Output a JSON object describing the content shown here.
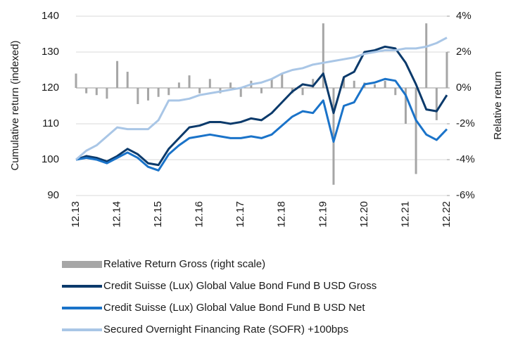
{
  "chart_data": {
    "type": "line",
    "y_label": "Cumulative return (indexed)",
    "y2_label": "Relative return",
    "categories": [
      "12.13",
      null,
      null,
      null,
      "12.14",
      null,
      null,
      null,
      "12.15",
      null,
      null,
      null,
      "12.16",
      null,
      null,
      null,
      "12.17",
      null,
      null,
      null,
      "12.18",
      null,
      null,
      null,
      "12.19",
      null,
      null,
      null,
      "12.20",
      null,
      null,
      null,
      "12.21",
      null,
      null,
      null,
      "12.22"
    ],
    "ylim": [
      90,
      140
    ],
    "yticks": [
      90,
      100,
      110,
      120,
      130,
      140
    ],
    "y2lim": [
      -6,
      4
    ],
    "y2ticks": [
      {
        "value": -6,
        "label": "-6%"
      },
      {
        "value": -4,
        "label": "-4%"
      },
      {
        "value": -2,
        "label": "-2%"
      },
      {
        "value": 0,
        "label": "0%"
      },
      {
        "value": 2,
        "label": "2%"
      },
      {
        "value": 4,
        "label": "4%"
      }
    ],
    "grid": true,
    "series": [
      {
        "name": "Relative Return Gross (right scale)",
        "kind": "bar",
        "axis": "y2",
        "color": "#a6a6a6",
        "values": [
          0.8,
          -0.3,
          -0.4,
          -0.6,
          1.5,
          0.9,
          -0.9,
          -0.7,
          -0.5,
          -0.4,
          0.3,
          0.7,
          -0.3,
          0.5,
          -0.3,
          0.3,
          -0.5,
          0.4,
          -0.3,
          0.5,
          0.8,
          -0.3,
          -0.4,
          0.5,
          3.6,
          -5.4,
          0.6,
          0.4,
          0.3,
          0.2,
          0.4,
          -0.4,
          -2.0,
          -4.8,
          3.6,
          -1.8,
          2.0
        ]
      },
      {
        "name": "Credit Suisse (Lux) Global Value Bond Fund B USD Gross",
        "kind": "line",
        "color": "#0b3a6b",
        "values": [
          100,
          101,
          100.5,
          99.5,
          101,
          103,
          101.5,
          99,
          98.5,
          103,
          106,
          109,
          109.5,
          110.5,
          110.5,
          110,
          110.5,
          111.5,
          111,
          113,
          116,
          119,
          121,
          120.5,
          124,
          113,
          123,
          124.5,
          130,
          130.5,
          131.5,
          131,
          127,
          121,
          114,
          113.5,
          118
        ]
      },
      {
        "name": "Credit Suisse (Lux) Global Value Bond Fund B USD Net",
        "kind": "line",
        "color": "#1a73c9",
        "values": [
          100,
          100.5,
          100,
          99,
          100.5,
          102,
          100.5,
          98,
          97,
          101.5,
          104,
          106,
          106.5,
          107,
          106.5,
          106,
          106,
          106.5,
          106,
          107,
          109.5,
          112,
          113.5,
          113,
          116.5,
          105,
          115,
          116,
          121,
          121.5,
          122.5,
          122,
          118,
          111,
          107,
          105.5,
          108.5
        ]
      },
      {
        "name": "Secured Overnight Financing Rate (SOFR) +100bps",
        "kind": "line",
        "color": "#a9c6e6",
        "values": [
          100,
          102.5,
          104,
          106.5,
          109,
          108.5,
          108.5,
          108.5,
          111,
          116.5,
          116.5,
          117,
          118,
          118.5,
          119,
          119.5,
          120,
          121,
          121.5,
          122.5,
          124,
          125,
          125.5,
          126.5,
          127,
          127.5,
          128,
          128.5,
          129.5,
          130,
          130.5,
          130.5,
          131,
          131,
          131.5,
          132.5,
          134
        ]
      }
    ]
  }
}
